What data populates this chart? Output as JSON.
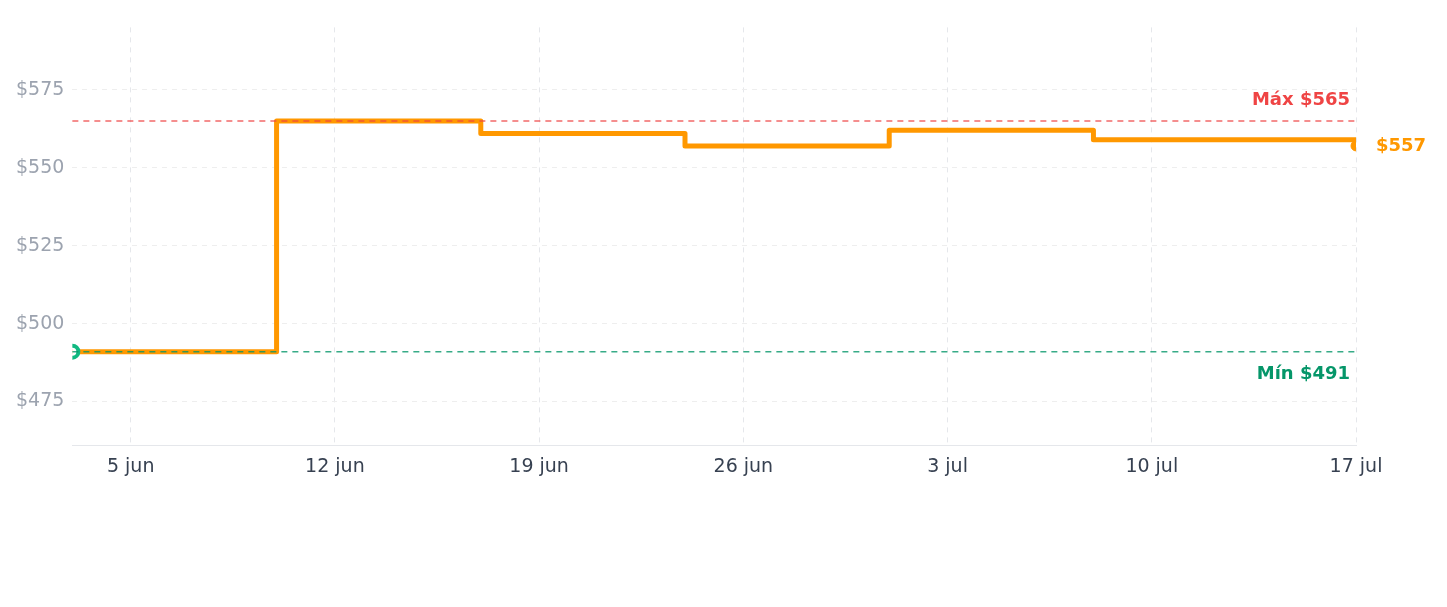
{
  "chart_data": {
    "type": "step",
    "x": [
      "--06-03",
      "--06-10",
      "--06-17",
      "--06-24",
      "--07-01",
      "--07-08",
      "--07-17"
    ],
    "series": [
      {
        "color": "#ff9800",
        "values": [
          491,
          565,
          561,
          557,
          562,
          559,
          557
        ],
        "value_labels": [
          null,
          null,
          null,
          null,
          null,
          null,
          "$557"
        ]
      }
    ],
    "xlim": [
      "--06-03",
      "--07-17"
    ],
    "xticks": [
      {
        "value": "--06-05",
        "label": "5 jun"
      },
      {
        "value": "--06-12",
        "label": "12 jun"
      },
      {
        "value": "--06-19",
        "label": "19 jun"
      },
      {
        "value": "--06-26",
        "label": "26 jun"
      },
      {
        "value": "--07-03",
        "label": "3 jul"
      },
      {
        "value": "--07-10",
        "label": "10 jul"
      },
      {
        "value": "--07-17",
        "label": "17 jul"
      }
    ],
    "ylim": [
      461,
      595
    ],
    "yticks": [
      {
        "value": 475,
        "label": "$475"
      },
      {
        "value": 500,
        "label": "$500"
      },
      {
        "value": 525,
        "label": "$525"
      },
      {
        "value": 550,
        "label": "$550"
      },
      {
        "value": 575,
        "label": "$575"
      }
    ],
    "ref_lines": [
      {
        "axis": "y",
        "value": 565,
        "label": "Máx $565",
        "color": "#ef4444",
        "line_style": "dashed"
      },
      {
        "axis": "y",
        "value": 491,
        "label": "Mín $491",
        "color": "#059669",
        "line_style": "dashed"
      }
    ],
    "grid": true,
    "line_style": "solid"
  }
}
